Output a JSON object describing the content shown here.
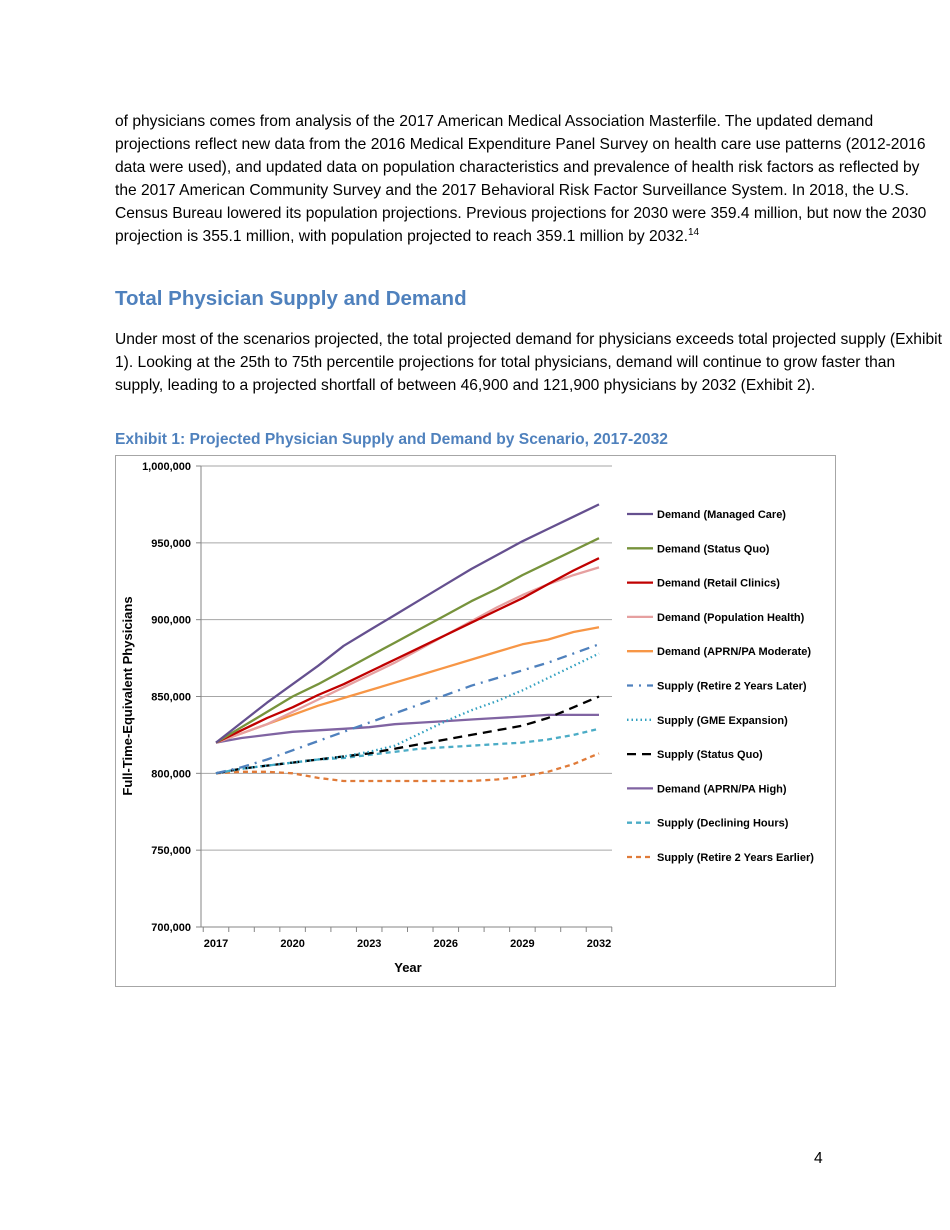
{
  "body": {
    "paragraph1": "of physicians comes from analysis of the 2017 American Medical Association Masterfile. The updated demand projections reflect new data from the 2016 Medical Expenditure Panel Survey on health care use patterns (2012-2016 data were used), and updated data on population characteristics and prevalence of health risk factors as reflected by the 2017 American Community Survey and the 2017 Behavioral Risk Factor Surveillance System. In 2018, the U.S. Census Bureau lowered its population projections. Previous projections for 2030 were 359.4 million, but now the 2030 projection is 355.1 million, with population projected to reach 359.1 million by 2032.",
    "footnote_ref": "14",
    "section_heading": "Total Physician Supply and Demand",
    "paragraph2": "Under most of the scenarios projected, the total projected demand for physicians exceeds total projected supply (Exhibit 1). Looking at the 25th to 75th percentile projections for total physicians, demand will continue to grow faster than supply, leading to a projected shortfall of between 46,900 and 121,900 physicians by 2032 (Exhibit 2).",
    "exhibit_caption": "Exhibit 1: Projected Physician Supply and Demand by Scenario, 2017-2032",
    "page_number": "4"
  },
  "chart_data": {
    "type": "line",
    "title": "",
    "xlabel": "Year",
    "ylabel": "Full-Time-Equivalent Physicians",
    "x": [
      2017,
      2018,
      2019,
      2020,
      2021,
      2022,
      2023,
      2024,
      2025,
      2026,
      2027,
      2028,
      2029,
      2030,
      2031,
      2032
    ],
    "x_tick_labels": [
      "2017",
      "2020",
      "2023",
      "2026",
      "2029",
      "2032"
    ],
    "y_tick_labels": [
      "700,000",
      "750,000",
      "800,000",
      "850,000",
      "900,000",
      "950,000",
      "1,000,000"
    ],
    "ylim": [
      700000,
      1000000
    ],
    "grid": "horizontal",
    "legend_position": "right",
    "series": [
      {
        "name": "Demand (Managed Care)",
        "color": "#65508f",
        "dash": "solid",
        "values": [
          820000,
          833000,
          846000,
          858000,
          870000,
          883000,
          893000,
          903000,
          913000,
          923000,
          933000,
          942000,
          951000,
          959000,
          967000,
          975000
        ]
      },
      {
        "name": "Demand (Status Quo)",
        "color": "#77933c",
        "dash": "solid",
        "values": [
          820000,
          830000,
          840000,
          850000,
          858000,
          867000,
          876000,
          885000,
          894000,
          903000,
          912000,
          920000,
          929000,
          937000,
          945000,
          953000
        ]
      },
      {
        "name": "Demand (Retail Clinics)",
        "color": "#c00000",
        "dash": "solid",
        "values": [
          820000,
          828000,
          836000,
          843000,
          851000,
          858000,
          866000,
          874000,
          882000,
          890000,
          898000,
          906000,
          914000,
          923000,
          932000,
          940000
        ]
      },
      {
        "name": "Demand (Population Health)",
        "color": "#e6a0a0",
        "dash": "solid",
        "values": [
          820000,
          826000,
          832000,
          840000,
          848000,
          856000,
          864000,
          872000,
          881000,
          890000,
          899000,
          908000,
          916000,
          923000,
          929000,
          934000
        ]
      },
      {
        "name": "Demand (APRN/PA Moderate)",
        "color": "#f79646",
        "dash": "solid",
        "values": [
          820000,
          826000,
          832000,
          838000,
          844000,
          849000,
          854000,
          859000,
          864000,
          869000,
          874000,
          879000,
          884000,
          887000,
          892000,
          895000
        ]
      },
      {
        "name": "Supply (Retire 2 Years Later)",
        "color": "#4f81bd",
        "dash": "dashdot",
        "values": [
          800000,
          804000,
          809000,
          815000,
          821000,
          827000,
          833000,
          839000,
          845000,
          851000,
          857000,
          862000,
          867000,
          872000,
          878000,
          884000
        ]
      },
      {
        "name": "Supply (GME Expansion)",
        "color": "#31a0c0",
        "dash": "dot",
        "values": [
          800000,
          803000,
          805000,
          807000,
          809000,
          811000,
          814000,
          818000,
          826000,
          834000,
          841000,
          847000,
          854000,
          862000,
          870000,
          878000
        ]
      },
      {
        "name": "Supply (Status Quo)",
        "color": "#000000",
        "dash": "dash",
        "values": [
          800000,
          803000,
          805000,
          807000,
          809000,
          811000,
          813000,
          816000,
          819000,
          822000,
          825000,
          828000,
          831000,
          836000,
          843000,
          850000
        ]
      },
      {
        "name": "Demand (APRN/PA High)",
        "color": "#8064a2",
        "dash": "solid",
        "values": [
          820000,
          823000,
          825000,
          827000,
          828000,
          829000,
          830000,
          832000,
          833000,
          834000,
          835000,
          836000,
          837000,
          838000,
          838000,
          838000
        ]
      },
      {
        "name": "Supply (Declining Hours)",
        "color": "#4bacc6",
        "dash": "shortdash",
        "values": [
          800000,
          803000,
          805000,
          807000,
          809000,
          810000,
          812000,
          814000,
          816000,
          817000,
          818000,
          819000,
          820000,
          822000,
          825000,
          829000
        ]
      },
      {
        "name": "Supply (Retire 2 Years Earlier)",
        "color": "#e07b39",
        "dash": "shortdash",
        "values": [
          800000,
          801000,
          801000,
          800000,
          797000,
          795000,
          795000,
          795000,
          795000,
          795000,
          795000,
          796000,
          798000,
          801000,
          806000,
          813000
        ]
      }
    ]
  }
}
